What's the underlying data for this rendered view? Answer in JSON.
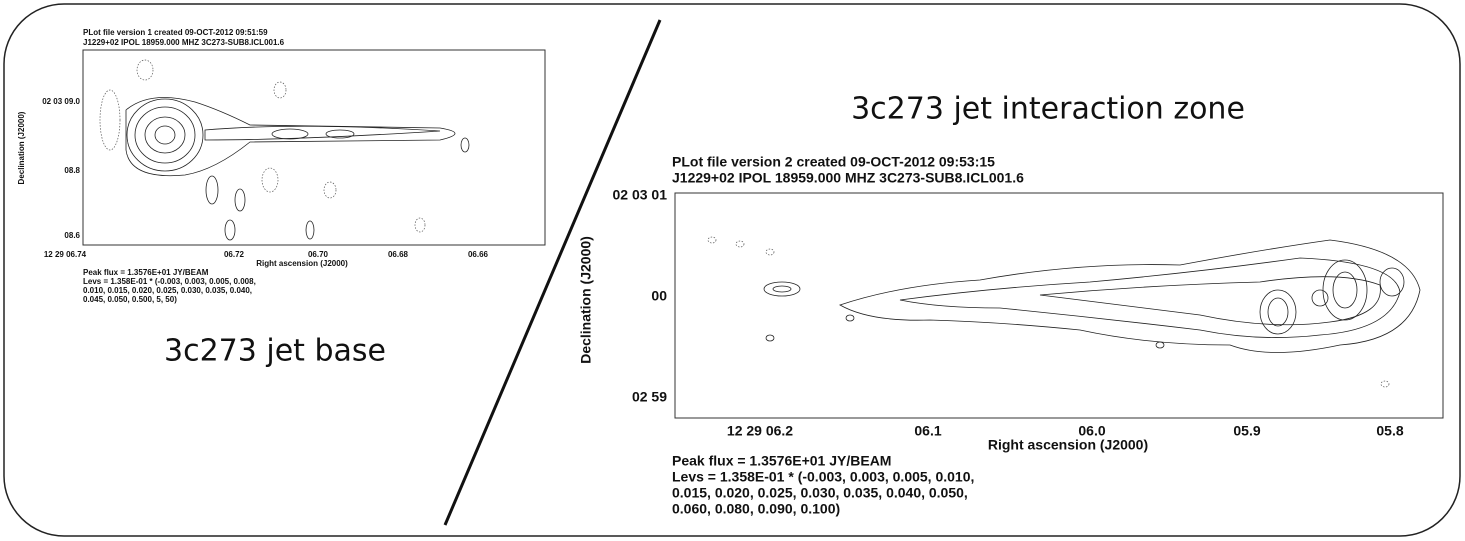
{
  "left_panel": {
    "header": [
      "PLot file version 1  created 09-OCT-2012 09:51:59",
      "J1229+02  IPOL  18959.000 MHZ  3C273-SUB8.ICL001.6"
    ],
    "y_label": "Declination (J2000)",
    "y_tick_labels": [
      "02 03 09.0",
      "08.8",
      "08.6"
    ],
    "x_tick_labels": [
      "12 29 06.74",
      "06.72",
      "06.70",
      "06.68",
      "06.66"
    ],
    "x_label": "Right ascension (J2000)",
    "footer": [
      "Peak flux = 1.3576E+01 JY/BEAM",
      "Levs = 1.358E-01 * (-0.003, 0.003, 0.005, 0.008,",
      "0.010, 0.015, 0.020, 0.025, 0.030, 0.035, 0.040,",
      "0.045, 0.050, 0.500, 5, 50)"
    ],
    "caption": "3c273 jet base"
  },
  "right_panel": {
    "title": "3c273 jet interaction zone",
    "header": [
      "PLot file version 2  created 09-OCT-2012 09:53:15",
      "J1229+02  IPOL  18959.000 MHZ  3C273-SUB8.ICL001.6"
    ],
    "y_label": "Declination (J2000)",
    "y_tick_labels": [
      "02 03 01",
      "00",
      "02 59"
    ],
    "x_tick_labels": [
      "12 29 06.2",
      "06.1",
      "06.0",
      "05.9",
      "05.8"
    ],
    "x_label": "Right ascension (J2000)",
    "footer": [
      "Peak flux =  1.3576E+01 JY/BEAM",
      "Levs = 1.358E-01 * (-0.003, 0.003, 0.005, 0.010,",
      "0.015, 0.020, 0.025, 0.030, 0.035, 0.040, 0.050,",
      "0.060, 0.080, 0.090, 0.100)"
    ]
  }
}
